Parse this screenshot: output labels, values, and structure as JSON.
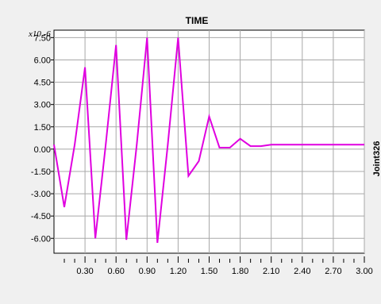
{
  "chart_data": {
    "type": "line",
    "title": "TIME",
    "y_exponent": "x10 -6",
    "series_label": "Joint326",
    "line_color": "#e000e0",
    "x_ticks": [
      "0.30",
      "0.60",
      "0.90",
      "1.20",
      "1.50",
      "1.80",
      "2.10",
      "2.40",
      "2.70",
      "3.00"
    ],
    "y_ticks": [
      "7.50",
      "6.00",
      "4.50",
      "3.00",
      "1.50",
      "0.00",
      "-1.50",
      "-3.00",
      "-4.50",
      "-6.00"
    ],
    "xlim": [
      0,
      3.0
    ],
    "ylim": [
      -7.0,
      8.0
    ],
    "grid": true,
    "series": [
      {
        "x": [
          0.0,
          0.1,
          0.2,
          0.3,
          0.4,
          0.5,
          0.6,
          0.7,
          0.8,
          0.9,
          1.0,
          1.1,
          1.2,
          1.3,
          1.4,
          1.5,
          1.6,
          1.7,
          1.8,
          1.9,
          2.0,
          2.1,
          2.4,
          2.7,
          3.0
        ],
        "y": [
          0.3,
          -3.9,
          0.3,
          5.5,
          -6.0,
          0.3,
          7.0,
          -6.1,
          0.3,
          7.5,
          -6.3,
          0.3,
          7.5,
          -1.8,
          -0.8,
          2.2,
          0.1,
          0.1,
          0.7,
          0.2,
          0.2,
          0.3,
          0.3,
          0.3,
          0.3
        ]
      }
    ]
  }
}
